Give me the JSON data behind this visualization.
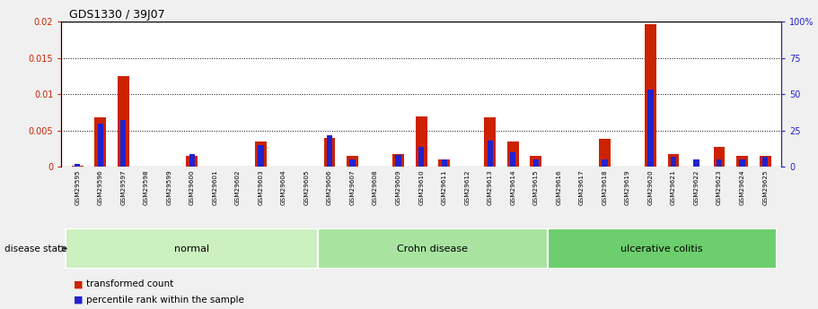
{
  "title": "GDS1330 / 39J07",
  "samples": [
    "GSM29595",
    "GSM29596",
    "GSM29597",
    "GSM29598",
    "GSM29599",
    "GSM29600",
    "GSM29601",
    "GSM29602",
    "GSM29603",
    "GSM29604",
    "GSM29605",
    "GSM29606",
    "GSM29607",
    "GSM29608",
    "GSM29609",
    "GSM29610",
    "GSM29611",
    "GSM29612",
    "GSM29613",
    "GSM29614",
    "GSM29615",
    "GSM29616",
    "GSM29617",
    "GSM29618",
    "GSM29619",
    "GSM29620",
    "GSM29621",
    "GSM29622",
    "GSM29623",
    "GSM29624",
    "GSM29625"
  ],
  "transformed_count": [
    0.0002,
    0.0068,
    0.0125,
    0.0,
    0.0,
    0.0015,
    0.0,
    0.0,
    0.0035,
    0.0,
    0.0,
    0.004,
    0.0015,
    0.0,
    0.0018,
    0.007,
    0.001,
    0.0,
    0.0068,
    0.0035,
    0.0015,
    0.0,
    0.0,
    0.0038,
    0.0,
    0.0197,
    0.0018,
    0.0,
    0.0028,
    0.0015,
    0.0015
  ],
  "percentile_rank": [
    2,
    30,
    32,
    0,
    0,
    9,
    0,
    0,
    15,
    0,
    0,
    22,
    5,
    0,
    8,
    14,
    5,
    0,
    18,
    10,
    5,
    0,
    0,
    5,
    0,
    53,
    7,
    5,
    5,
    5,
    7
  ],
  "groups": [
    {
      "label": "normal",
      "start": 0,
      "end": 10,
      "color": "#ccf0c0"
    },
    {
      "label": "Crohn disease",
      "start": 11,
      "end": 20,
      "color": "#a8e4a0"
    },
    {
      "label": "ulcerative colitis",
      "start": 21,
      "end": 30,
      "color": "#6dce6d"
    }
  ],
  "bar_color_red": "#cc2200",
  "bar_color_blue": "#2222cc",
  "ylim_left": [
    0,
    0.02
  ],
  "ylim_right": [
    0,
    100
  ],
  "yticks_left": [
    0,
    0.005,
    0.01,
    0.015,
    0.02
  ],
  "yticks_right": [
    0,
    25,
    50,
    75,
    100
  ],
  "ytick_labels_left": [
    "0",
    "0.005",
    "0.01",
    "0.015",
    "0.02"
  ],
  "ytick_labels_right": [
    "0",
    "25",
    "50",
    "75",
    "100%"
  ],
  "disease_state_label": "disease state",
  "legend_items": [
    {
      "label": "transformed count",
      "color": "#cc2200"
    },
    {
      "label": "percentile rank within the sample",
      "color": "#2222cc"
    }
  ],
  "plot_bg_color": "#ffffff",
  "fig_bg_color": "#f0f0f0",
  "bar_width": 0.5,
  "blue_bar_width": 0.25
}
